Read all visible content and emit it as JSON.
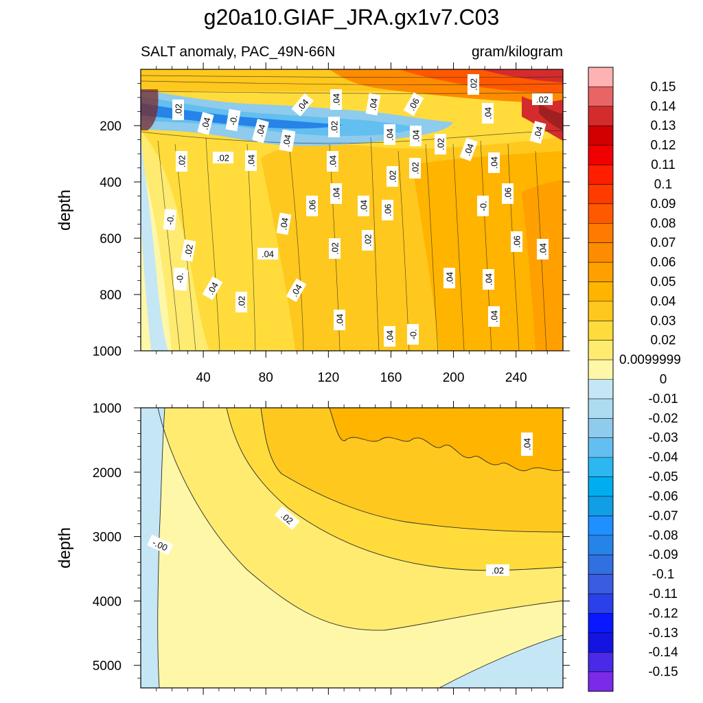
{
  "chart_data": {
    "type": "heatmap",
    "title": "g20a10.GIAF_JRA.gx1v7.C03",
    "subtitle_left": "SALT anomaly, PAC_49N-66N",
    "subtitle_right": "gram/kilogram",
    "colorbar": {
      "levels": [
        "0.15",
        "0.14",
        "0.13",
        "0.12",
        "0.11",
        "0.1",
        "0.09",
        "0.08",
        "0.07",
        "0.06",
        "0.05",
        "0.04",
        "0.03",
        "0.02",
        "0.0099999",
        "0",
        "-0.01",
        "-0.02",
        "-0.03",
        "-0.04",
        "-0.05",
        "-0.06",
        "-0.07",
        "-0.08",
        "-0.09",
        "-0.1",
        "-0.11",
        "-0.12",
        "-0.13",
        "-0.14",
        "-0.15"
      ],
      "colors": [
        "#ffb2b2",
        "#e96565",
        "#d42c2c",
        "#d20000",
        "#f00000",
        "#ff1e00",
        "#ff3b00",
        "#ff5900",
        "#ff7a00",
        "#ff8c00",
        "#ffa000",
        "#ffb400",
        "#ffc81e",
        "#ffdc3c",
        "#ffeb70",
        "#fff7a8",
        "#c5e6f5",
        "#addcf0",
        "#8fcbed",
        "#63bfef",
        "#2cb7f0",
        "#00aeef",
        "#109ee6",
        "#1e90ff",
        "#2683e8",
        "#3070e0",
        "#3a5ce0",
        "#2a40e8",
        "#0a18ff",
        "#1414e0",
        "#4a2ae8",
        "#7a2ae8"
      ]
    },
    "panels": [
      {
        "ylabel": "depth",
        "xticks": [
          "40",
          "80",
          "120",
          "160",
          "200",
          "240"
        ],
        "yticks": [
          "200",
          "400",
          "600",
          "800",
          "1000"
        ],
        "y_range": [
          0,
          1000
        ],
        "x_range": [
          0,
          270
        ],
        "annotations": [
          ".02",
          ".02",
          ".04",
          "-0.",
          ".02",
          ".02",
          "-0.",
          ".02",
          "-0.",
          ".04",
          ".02",
          ".04",
          ".04",
          ".04",
          ".06",
          ".04",
          ".04",
          ".06",
          ".02",
          ".02",
          ".02",
          ".02",
          ".02",
          ".04",
          ".04",
          ".04",
          ".04",
          ".04",
          ".06",
          ".04",
          ".04",
          ".04",
          ".04",
          ".04",
          "-0.",
          ".02",
          ".04",
          ".04",
          ".06",
          ".06",
          "-0.",
          ".02",
          ".04",
          ".04",
          ".04",
          "-0.",
          ".02",
          ".02",
          ".04",
          ".04",
          ".04",
          ".04"
        ]
      },
      {
        "ylabel": "depth",
        "xticks": [],
        "yticks": [
          "1000",
          "2000",
          "3000",
          "4000",
          "5000"
        ],
        "y_range": [
          1000,
          5350
        ],
        "x_range": [
          0,
          270
        ],
        "annotations": [
          ".04",
          ".02",
          "-.00",
          ".02"
        ]
      }
    ]
  }
}
